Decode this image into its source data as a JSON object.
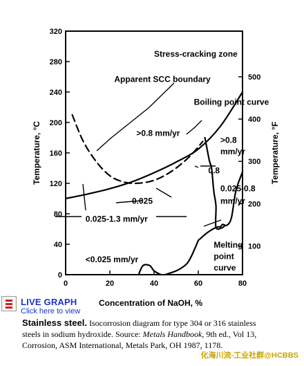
{
  "chart_data": {
    "type": "line",
    "xlabel": "Concentration of NaOH, %",
    "ylabel_left": "Temperature, °C",
    "ylabel_right": "Temperature, °F",
    "xlim": [
      0,
      80
    ],
    "ylim": [
      0,
      320
    ],
    "xticks": [
      0,
      20,
      40,
      60,
      80
    ],
    "yticks_left": [
      0,
      40,
      80,
      120,
      160,
      200,
      240,
      280,
      320
    ],
    "yticks_right": [
      100,
      200,
      300,
      400,
      500
    ],
    "grid": false,
    "series": [
      {
        "name": "Boiling point curve",
        "style": "solid",
        "x": [
          0,
          10,
          20,
          30,
          40,
          50,
          60,
          70,
          80
        ],
        "y": [
          100,
          106,
          113,
          122,
          134,
          148,
          165,
          195,
          240
        ]
      },
      {
        "name": "Apparent SCC boundary",
        "style": "dashed",
        "x": [
          3,
          8,
          14,
          20,
          26,
          32,
          40,
          48,
          56,
          62
        ],
        "y": [
          210,
          175,
          148,
          130,
          122,
          120,
          124,
          136,
          155,
          175
        ]
      },
      {
        "name": "Melting point curve",
        "style": "solid",
        "x": [
          60,
          64,
          68,
          70,
          71,
          73,
          75,
          77,
          80
        ],
        "y": [
          45,
          55,
          62,
          63,
          66,
          65,
          75,
          110,
          135
        ]
      },
      {
        "name": "boundary",
        "style": "solid",
        "x": [
          63,
          65,
          66,
          67,
          68,
          68,
          71,
          72
        ],
        "y": [
          180,
          150,
          140,
          110,
          90,
          62,
          62,
          65
        ]
      },
      {
        "name": "boundary",
        "style": "solid",
        "x": [
          33,
          35,
          38,
          40,
          43
        ],
        "y": [
          0,
          12,
          12,
          5,
          0
        ]
      },
      {
        "name": "boundary",
        "style": "solid",
        "x": [
          45,
          50,
          53,
          55,
          57,
          60
        ],
        "y": [
          0,
          5,
          10,
          15,
          25,
          45
        ]
      }
    ],
    "annotations": [
      {
        "text": "Stress-cracking zone",
        "x": 40,
        "y": 290
      },
      {
        "text": "Apparent SCC boundary",
        "x": 22,
        "y": 257
      },
      {
        "text": "Boiling point curve",
        "x": 58,
        "y": 227
      },
      {
        "text": ">0.8 mm/yr",
        "x": 32,
        "y": 186
      },
      {
        "text": ">0.8",
        "x": 70,
        "y": 177
      },
      {
        "text": "mm/yr",
        "x": 70,
        "y": 162
      },
      {
        "text": "0.8",
        "x": 64.5,
        "y": 137
      },
      {
        "text": "0.025-0.8",
        "x": 70,
        "y": 113
      },
      {
        "text": "mm/yr",
        "x": 70,
        "y": 97
      },
      {
        "text": "0.025",
        "x": 30,
        "y": 97
      },
      {
        "text": "0.025-1.3 mm/yr",
        "x": 9,
        "y": 73
      },
      {
        "text": "<0.025 mm/yr",
        "x": 9,
        "y": 20
      },
      {
        "text": "Melting",
        "x": 67,
        "y": 39
      },
      {
        "text": "point",
        "x": 67,
        "y": 24
      },
      {
        "text": "curve",
        "x": 67,
        "y": 9
      }
    ]
  },
  "live_graph": {
    "title": "LIVE GRAPH",
    "subtitle": "Click here to view"
  },
  "caption": {
    "lead": "Stainless steel.",
    "line1": " Isocorrosion diagram for type 304 or 316 stainless",
    "line2": "steels in sodium hydroxide. Source: ",
    "source_title": "Metals Handbook",
    "line3": ", 9th ed., Vol 13,",
    "line4": "Corrosion, ASM International, Metals Park, OH 1987, 1178."
  },
  "watermark": "化海川流-工业社群@HCBBS"
}
